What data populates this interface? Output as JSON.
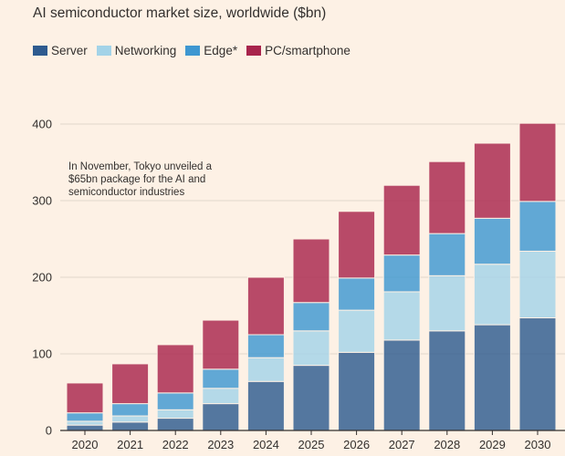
{
  "chart_data": {
    "type": "bar",
    "stacked": true,
    "title": "AI semiconductor market size, worldwide ($bn)",
    "categories": [
      "2020",
      "2021",
      "2022",
      "2023",
      "2024",
      "2025",
      "2026",
      "2027",
      "2028",
      "2029",
      "2030"
    ],
    "series": [
      {
        "name": "Server",
        "color": "#2e5b8f",
        "values": [
          7,
          11,
          16,
          35,
          64,
          85,
          102,
          118,
          130,
          138,
          147
        ]
      },
      {
        "name": "Networking",
        "color": "#a3d3e8",
        "values": [
          5,
          8,
          11,
          20,
          31,
          45,
          55,
          63,
          72,
          79,
          87
        ]
      },
      {
        "name": "Edge*",
        "color": "#3e97d1",
        "values": [
          11,
          16,
          22,
          25,
          30,
          37,
          42,
          48,
          55,
          60,
          65
        ]
      },
      {
        "name": "PC/smartphone",
        "color": "#a8244c",
        "values": [
          39,
          52,
          63,
          64,
          75,
          83,
          87,
          91,
          94,
          98,
          102
        ]
      }
    ],
    "ylim": [
      0,
      410
    ],
    "yticks": [
      0,
      100,
      200,
      300,
      400
    ],
    "xlabel": "",
    "ylabel": "",
    "annotation": [
      "In November, Tokyo unveiled a",
      "$65bn package for the AI and",
      "semiconductor industries"
    ]
  }
}
